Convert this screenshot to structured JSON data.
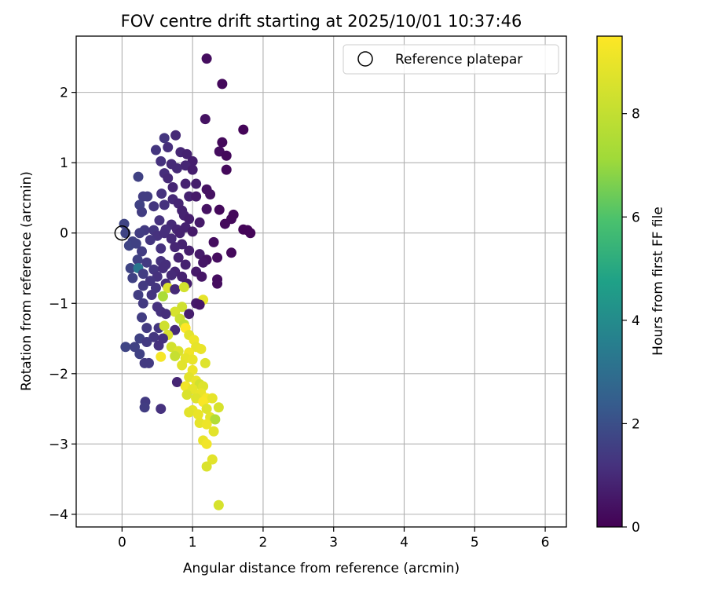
{
  "chart_data": {
    "type": "scatter",
    "title": "FOV centre drift starting at 2025/10/01 10:37:46",
    "xlabel": "Angular distance from reference (arcmin)",
    "ylabel": "Rotation from reference (arcmin)",
    "xlim": [
      -0.65,
      6.3
    ],
    "ylim": [
      -4.18,
      2.8
    ],
    "x_ticks": [
      0,
      1,
      2,
      3,
      4,
      5,
      6
    ],
    "y_ticks": [
      -4,
      -3,
      -2,
      -1,
      0,
      1,
      2
    ],
    "grid": true,
    "legend_position": "top-right",
    "legend": [
      {
        "label": "Reference platepar",
        "marker": "open-circle"
      }
    ],
    "reference_point": {
      "x": 0,
      "y": 0
    },
    "colorbar": {
      "label": "Hours from first FF file",
      "range": [
        0,
        9.5
      ],
      "ticks": [
        0,
        2,
        4,
        6,
        8
      ],
      "colormap": "viridis"
    },
    "points": [
      [
        1.2,
        2.48,
        0.3
      ],
      [
        1.42,
        2.12,
        0.2
      ],
      [
        1.18,
        1.62,
        0.4
      ],
      [
        1.72,
        1.47,
        0.1
      ],
      [
        0.76,
        1.39,
        1.0
      ],
      [
        0.6,
        1.35,
        1.3
      ],
      [
        1.42,
        1.29,
        0.2
      ],
      [
        0.83,
        1.15,
        0.9
      ],
      [
        0.65,
        1.22,
        1.1
      ],
      [
        0.48,
        1.18,
        1.3
      ],
      [
        1.38,
        1.16,
        0.3
      ],
      [
        1.48,
        1.1,
        0.2
      ],
      [
        0.92,
        1.12,
        0.8
      ],
      [
        1.0,
        1.02,
        0.7
      ],
      [
        0.55,
        1.02,
        1.2
      ],
      [
        0.7,
        0.98,
        1.0
      ],
      [
        0.9,
        0.96,
        0.9
      ],
      [
        0.78,
        0.92,
        1.0
      ],
      [
        1.0,
        0.9,
        0.7
      ],
      [
        0.6,
        0.85,
        1.1
      ],
      [
        1.48,
        0.9,
        0.2
      ],
      [
        0.23,
        0.8,
        1.6
      ],
      [
        0.65,
        0.78,
        1.0
      ],
      [
        0.9,
        0.7,
        0.8
      ],
      [
        1.05,
        0.7,
        0.7
      ],
      [
        0.72,
        0.65,
        0.9
      ],
      [
        1.2,
        0.62,
        0.4
      ],
      [
        1.25,
        0.55,
        0.4
      ],
      [
        0.56,
        0.56,
        1.2
      ],
      [
        0.36,
        0.52,
        1.5
      ],
      [
        0.3,
        0.52,
        1.5
      ],
      [
        0.95,
        0.52,
        0.8
      ],
      [
        1.05,
        0.52,
        0.6
      ],
      [
        0.72,
        0.48,
        1.0
      ],
      [
        0.8,
        0.42,
        0.9
      ],
      [
        0.25,
        0.4,
        1.6
      ],
      [
        0.45,
        0.38,
        1.3
      ],
      [
        0.6,
        0.4,
        1.2
      ],
      [
        1.2,
        0.34,
        0.4
      ],
      [
        1.38,
        0.33,
        0.2
      ],
      [
        0.85,
        0.32,
        0.8
      ],
      [
        0.28,
        0.3,
        1.5
      ],
      [
        0.88,
        0.25,
        0.8
      ],
      [
        1.58,
        0.26,
        0.2
      ],
      [
        1.55,
        0.2,
        0.2
      ],
      [
        0.53,
        0.18,
        1.2
      ],
      [
        0.95,
        0.2,
        0.7
      ],
      [
        1.1,
        0.15,
        0.6
      ],
      [
        0.7,
        0.12,
        1.0
      ],
      [
        1.46,
        0.13,
        0.2
      ],
      [
        0.03,
        0.13,
        1.7
      ],
      [
        0.78,
        0.05,
        0.9
      ],
      [
        0.9,
        0.08,
        0.8
      ],
      [
        1.72,
        0.05,
        0.1
      ],
      [
        1.78,
        0.04,
        0.1
      ],
      [
        0.32,
        0.04,
        1.4
      ],
      [
        0.45,
        0.04,
        1.3
      ],
      [
        0.62,
        0.05,
        1.1
      ],
      [
        1.82,
        0.0,
        0.1
      ],
      [
        0.25,
        0.0,
        1.5
      ],
      [
        0.5,
        -0.04,
        1.2
      ],
      [
        0.6,
        0.0,
        1.1
      ],
      [
        0.82,
        0.0,
        0.8
      ],
      [
        1.0,
        0.02,
        0.6
      ],
      [
        0.05,
        0.0,
        1.7
      ],
      [
        0.15,
        -0.12,
        1.6
      ],
      [
        0.4,
        -0.1,
        1.3
      ],
      [
        0.7,
        -0.08,
        1.0
      ],
      [
        1.3,
        -0.13,
        0.3
      ],
      [
        0.1,
        -0.18,
        1.7
      ],
      [
        0.2,
        -0.15,
        1.6
      ],
      [
        0.85,
        -0.16,
        0.8
      ],
      [
        0.75,
        -0.2,
        0.9
      ],
      [
        1.55,
        -0.28,
        0.2
      ],
      [
        0.28,
        -0.26,
        1.5
      ],
      [
        0.55,
        -0.22,
        1.2
      ],
      [
        0.95,
        -0.25,
        0.7
      ],
      [
        1.1,
        -0.3,
        0.6
      ],
      [
        0.8,
        -0.35,
        0.8
      ],
      [
        0.22,
        -0.38,
        1.6
      ],
      [
        0.55,
        -0.4,
        1.2
      ],
      [
        1.2,
        -0.38,
        0.4
      ],
      [
        1.35,
        -0.35,
        0.3
      ],
      [
        0.35,
        -0.42,
        1.4
      ],
      [
        0.62,
        -0.45,
        1.1
      ],
      [
        0.9,
        -0.45,
        0.8
      ],
      [
        1.15,
        -0.42,
        0.5
      ],
      [
        0.12,
        -0.5,
        1.7
      ],
      [
        0.23,
        -0.5,
        3.3
      ],
      [
        0.45,
        -0.52,
        1.3
      ],
      [
        0.75,
        -0.55,
        0.9
      ],
      [
        1.05,
        -0.55,
        0.6
      ],
      [
        0.58,
        -0.5,
        1.1
      ],
      [
        0.3,
        -0.58,
        1.5
      ],
      [
        0.7,
        -0.6,
        1.0
      ],
      [
        1.13,
        -0.62,
        0.5
      ],
      [
        0.15,
        -0.64,
        1.6
      ],
      [
        0.5,
        -0.62,
        1.2
      ],
      [
        0.85,
        -0.62,
        0.8
      ],
      [
        0.4,
        -0.68,
        1.3
      ],
      [
        1.35,
        -0.66,
        0.3
      ],
      [
        1.35,
        -0.72,
        0.3
      ],
      [
        0.62,
        -0.72,
        1.1
      ],
      [
        0.92,
        -0.72,
        0.7
      ],
      [
        0.3,
        -0.75,
        1.4
      ],
      [
        0.48,
        -0.78,
        1.3
      ],
      [
        0.65,
        -0.78,
        8.6
      ],
      [
        0.75,
        -0.8,
        1.0
      ],
      [
        0.88,
        -0.77,
        8.4
      ],
      [
        0.23,
        -0.88,
        1.5
      ],
      [
        0.42,
        -0.88,
        1.3
      ],
      [
        0.58,
        -0.9,
        7.4
      ],
      [
        1.15,
        -0.95,
        8.9
      ],
      [
        1.05,
        -1.0,
        0.6
      ],
      [
        1.1,
        -1.02,
        0.5
      ],
      [
        0.3,
        -1.0,
        1.4
      ],
      [
        0.5,
        -1.05,
        1.2
      ],
      [
        0.85,
        -1.05,
        8.3
      ],
      [
        0.75,
        -1.12,
        8.5
      ],
      [
        0.55,
        -1.12,
        1.2
      ],
      [
        0.62,
        -1.15,
        1.1
      ],
      [
        0.95,
        -1.15,
        0.7
      ],
      [
        0.82,
        -1.22,
        8.2
      ],
      [
        0.28,
        -1.2,
        1.5
      ],
      [
        0.88,
        -1.3,
        7.9
      ],
      [
        0.35,
        -1.35,
        1.4
      ],
      [
        0.52,
        -1.35,
        1.3
      ],
      [
        0.6,
        -1.32,
        8.3
      ],
      [
        0.9,
        -1.35,
        9.5
      ],
      [
        0.75,
        -1.38,
        1.0
      ],
      [
        0.65,
        -1.45,
        8.6
      ],
      [
        0.95,
        -1.45,
        8.8
      ],
      [
        0.25,
        -1.5,
        1.6
      ],
      [
        0.45,
        -1.48,
        1.3
      ],
      [
        0.58,
        -1.5,
        1.2
      ],
      [
        1.02,
        -1.52,
        9.1
      ],
      [
        0.35,
        -1.55,
        1.4
      ],
      [
        0.05,
        -1.62,
        1.7
      ],
      [
        0.18,
        -1.62,
        1.6
      ],
      [
        0.52,
        -1.6,
        1.2
      ],
      [
        0.7,
        -1.62,
        8.4
      ],
      [
        1.05,
        -1.62,
        8.9
      ],
      [
        0.8,
        -1.68,
        8.6
      ],
      [
        0.95,
        -1.7,
        9.2
      ],
      [
        1.12,
        -1.65,
        9.0
      ],
      [
        0.25,
        -1.72,
        1.6
      ],
      [
        0.55,
        -1.76,
        9.3
      ],
      [
        0.75,
        -1.75,
        8.1
      ],
      [
        0.9,
        -1.78,
        8.9
      ],
      [
        1.0,
        -1.8,
        9.0
      ],
      [
        0.32,
        -1.85,
        1.4
      ],
      [
        0.38,
        -1.85,
        1.4
      ],
      [
        1.18,
        -1.85,
        8.7
      ],
      [
        0.85,
        -1.88,
        8.8
      ],
      [
        1.0,
        -1.95,
        9.1
      ],
      [
        0.95,
        -2.05,
        8.8
      ],
      [
        1.05,
        -2.1,
        9.0
      ],
      [
        0.78,
        -2.12,
        0.9
      ],
      [
        1.1,
        -2.15,
        8.4
      ],
      [
        1.15,
        -2.18,
        8.7
      ],
      [
        0.9,
        -2.18,
        9.2
      ],
      [
        1.0,
        -2.22,
        8.9
      ],
      [
        1.12,
        -2.28,
        9.0
      ],
      [
        0.92,
        -2.3,
        8.6
      ],
      [
        1.2,
        -2.35,
        9.3
      ],
      [
        1.05,
        -2.35,
        8.7
      ],
      [
        1.28,
        -2.35,
        8.9
      ],
      [
        1.15,
        -2.4,
        9.4
      ],
      [
        0.33,
        -2.4,
        1.4
      ],
      [
        0.32,
        -2.48,
        1.5
      ],
      [
        1.37,
        -2.48,
        8.5
      ],
      [
        0.55,
        -2.5,
        1.2
      ],
      [
        1.2,
        -2.5,
        8.7
      ],
      [
        1.0,
        -2.52,
        8.9
      ],
      [
        0.95,
        -2.55,
        8.8
      ],
      [
        1.08,
        -2.58,
        9.0
      ],
      [
        1.25,
        -2.62,
        8.8
      ],
      [
        1.32,
        -2.65,
        7.6
      ],
      [
        1.1,
        -2.7,
        8.9
      ],
      [
        1.2,
        -2.72,
        9.1
      ],
      [
        1.3,
        -2.82,
        8.8
      ],
      [
        1.15,
        -2.95,
        9.0
      ],
      [
        1.2,
        -3.0,
        9.2
      ],
      [
        1.28,
        -3.22,
        8.8
      ],
      [
        1.2,
        -3.32,
        8.6
      ],
      [
        1.37,
        -3.87,
        8.5
      ]
    ]
  }
}
